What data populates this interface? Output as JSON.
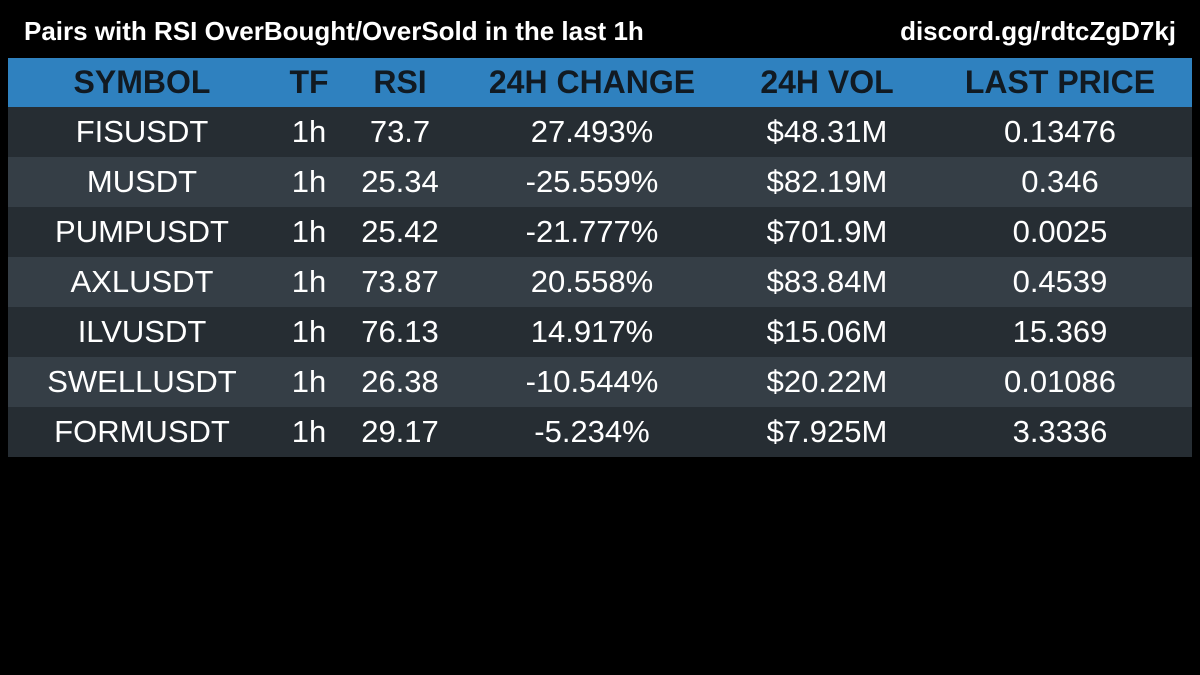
{
  "header": {
    "title": "Pairs with RSI OverBought/OverSold in the last 1h",
    "discord": "discord.gg/rdtcZgD7kj"
  },
  "colors": {
    "background": "#000000",
    "header_row": "#2f81bf",
    "header_text": "#111a22",
    "row_dark": "#262d33",
    "row_light": "#353e46",
    "cell_text": "#ffffff"
  },
  "table": {
    "columns": [
      "SYMBOL",
      "TF",
      "RSI",
      "24H CHANGE",
      "24H VOL",
      "LAST PRICE"
    ],
    "rows": [
      {
        "symbol": "FISUSDT",
        "tf": "1h",
        "rsi": "73.7",
        "change": "27.493%",
        "vol": "$48.31M",
        "price": "0.13476"
      },
      {
        "symbol": "MUSDT",
        "tf": "1h",
        "rsi": "25.34",
        "change": "-25.559%",
        "vol": "$82.19M",
        "price": "0.346"
      },
      {
        "symbol": "PUMPUSDT",
        "tf": "1h",
        "rsi": "25.42",
        "change": "-21.777%",
        "vol": "$701.9M",
        "price": "0.0025"
      },
      {
        "symbol": "AXLUSDT",
        "tf": "1h",
        "rsi": "73.87",
        "change": "20.558%",
        "vol": "$83.84M",
        "price": "0.4539"
      },
      {
        "symbol": "ILVUSDT",
        "tf": "1h",
        "rsi": "76.13",
        "change": "14.917%",
        "vol": "$15.06M",
        "price": "15.369"
      },
      {
        "symbol": "SWELLUSDT",
        "tf": "1h",
        "rsi": "26.38",
        "change": "-10.544%",
        "vol": "$20.22M",
        "price": "0.01086"
      },
      {
        "symbol": "FORMUSDT",
        "tf": "1h",
        "rsi": "29.17",
        "change": "-5.234%",
        "vol": "$7.925M",
        "price": "3.3336"
      }
    ]
  }
}
